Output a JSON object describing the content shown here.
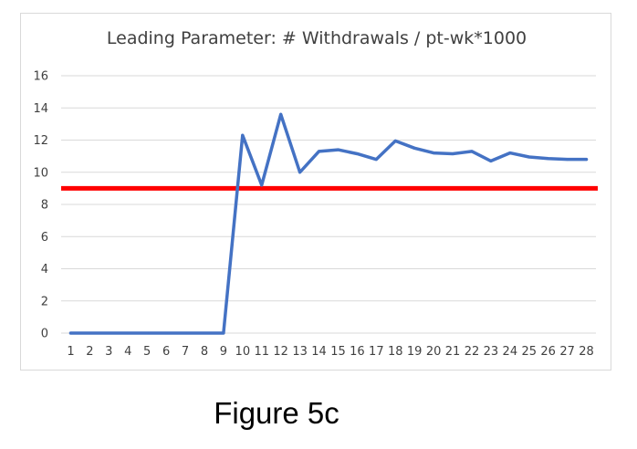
{
  "caption": "Figure 5c",
  "chart_data": {
    "type": "line",
    "title": "Leading Parameter: # Withdrawals / pt-wk*1000",
    "xlabel": "",
    "ylabel": "",
    "x": [
      1,
      2,
      3,
      4,
      5,
      6,
      7,
      8,
      9,
      10,
      11,
      12,
      13,
      14,
      15,
      16,
      17,
      18,
      19,
      20,
      21,
      22,
      23,
      24,
      25,
      26,
      27,
      28
    ],
    "series": [
      {
        "values": [
          0,
          0,
          0,
          0,
          0,
          0,
          0,
          0,
          0,
          12.3,
          9.2,
          13.6,
          10.0,
          11.3,
          11.4,
          11.15,
          10.8,
          11.95,
          11.5,
          11.2,
          11.15,
          11.3,
          10.7,
          11.2,
          10.95,
          10.85,
          10.8,
          10.8
        ],
        "color": "#4472c4"
      }
    ],
    "threshold": {
      "value": 9,
      "color": "#ff0000"
    },
    "ylim": [
      0,
      16
    ],
    "yticks": [
      0,
      2,
      4,
      6,
      8,
      10,
      12,
      14,
      16
    ],
    "grid": true,
    "legend": "none"
  }
}
